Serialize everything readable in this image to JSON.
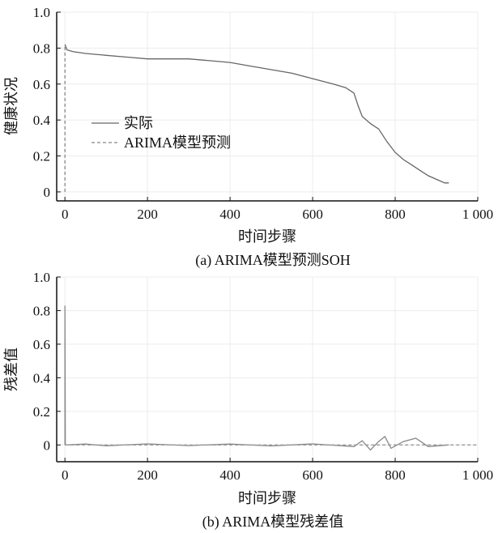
{
  "chart_data": [
    {
      "type": "line",
      "caption": "(a)  ARIMA模型预测SOH",
      "xlabel": "时间步骤",
      "ylabel": "健康状况",
      "xlim": [
        -20,
        1000
      ],
      "ylim": [
        -0.05,
        1.0
      ],
      "xticks": [
        0,
        200,
        400,
        600,
        800,
        1000
      ],
      "xtick_labels": [
        "0",
        "200",
        "400",
        "600",
        "800",
        "1 000"
      ],
      "yticks": [
        0,
        0.2,
        0.4,
        0.6,
        0.8,
        1.0
      ],
      "ytick_labels": [
        "0",
        "0.2",
        "0.4",
        "0.6",
        "0.8",
        "1.0"
      ],
      "grid": true,
      "legend_position": "center-left",
      "series": [
        {
          "name": "实际",
          "style": "solid",
          "color": "#666666",
          "x": [
            0,
            5,
            20,
            50,
            100,
            150,
            200,
            250,
            300,
            350,
            400,
            450,
            500,
            550,
            600,
            650,
            680,
            700,
            710,
            720,
            740,
            760,
            780,
            800,
            820,
            840,
            860,
            880,
            900,
            920,
            930
          ],
          "y": [
            0.82,
            0.79,
            0.78,
            0.77,
            0.76,
            0.75,
            0.74,
            0.74,
            0.74,
            0.73,
            0.72,
            0.7,
            0.68,
            0.66,
            0.63,
            0.6,
            0.58,
            0.55,
            0.48,
            0.42,
            0.38,
            0.35,
            0.28,
            0.22,
            0.18,
            0.15,
            0.12,
            0.09,
            0.07,
            0.05,
            0.05
          ]
        },
        {
          "name": "ARIMA模型预测",
          "style": "dashed",
          "color": "#888888",
          "x": [
            0,
            0
          ],
          "y": [
            0.0,
            0.82
          ]
        }
      ]
    },
    {
      "type": "line",
      "caption": "(b)  ARIMA模型残差值",
      "xlabel": "时间步骤",
      "ylabel": "残差值",
      "xlim": [
        -20,
        1000
      ],
      "ylim": [
        -0.1,
        1.0
      ],
      "xticks": [
        0,
        200,
        400,
        600,
        800,
        1000
      ],
      "xtick_labels": [
        "0",
        "200",
        "400",
        "600",
        "800",
        "1 000"
      ],
      "yticks": [
        0,
        0.2,
        0.4,
        0.6,
        0.8,
        1.0
      ],
      "ytick_labels": [
        "0",
        "0.2",
        "0.4",
        "0.6",
        "0.8",
        "1.0"
      ],
      "grid": true,
      "series": [
        {
          "name": "",
          "style": "solid",
          "color": "#888888",
          "x": [
            0,
            0,
            1,
            50,
            100,
            200,
            300,
            400,
            500,
            600,
            700,
            720,
            740,
            760,
            775,
            790,
            820,
            850,
            880,
            930
          ],
          "y": [
            0.0,
            0.83,
            0.0,
            0.005,
            -0.005,
            0.006,
            -0.004,
            0.005,
            -0.006,
            0.006,
            -0.01,
            0.025,
            -0.03,
            0.02,
            0.05,
            -0.02,
            0.02,
            0.04,
            -0.01,
            0.0
          ]
        },
        {
          "name": "",
          "style": "dashed",
          "color": "#999999",
          "x": [
            0,
            1000
          ],
          "y": [
            0,
            0
          ]
        }
      ]
    }
  ]
}
